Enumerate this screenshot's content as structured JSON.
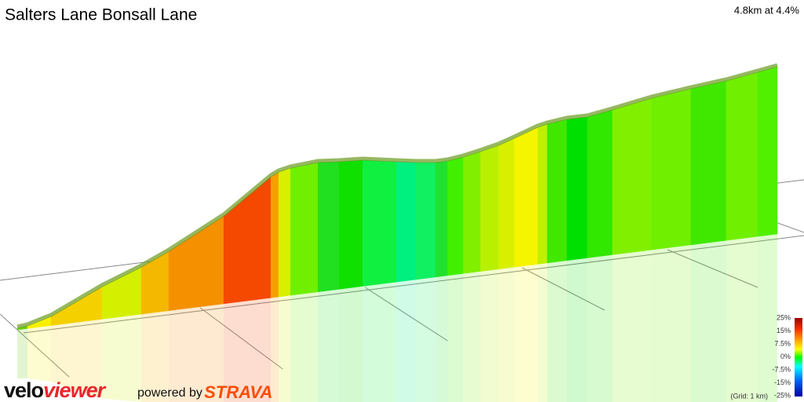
{
  "header": {
    "title": "Salters Lane Bonsall Lane",
    "summary": "4.8km at 4.4%"
  },
  "legend": {
    "labels": [
      "25%",
      "15%",
      "7.5%",
      "0%",
      "-7.5%",
      "-15%",
      "-25%"
    ],
    "grid_note": "(Grid: 1 km)"
  },
  "footer": {
    "logo_first": "velo",
    "logo_second": "viewer",
    "powered_by": "powered by",
    "partner": "STRAVA"
  }
}
